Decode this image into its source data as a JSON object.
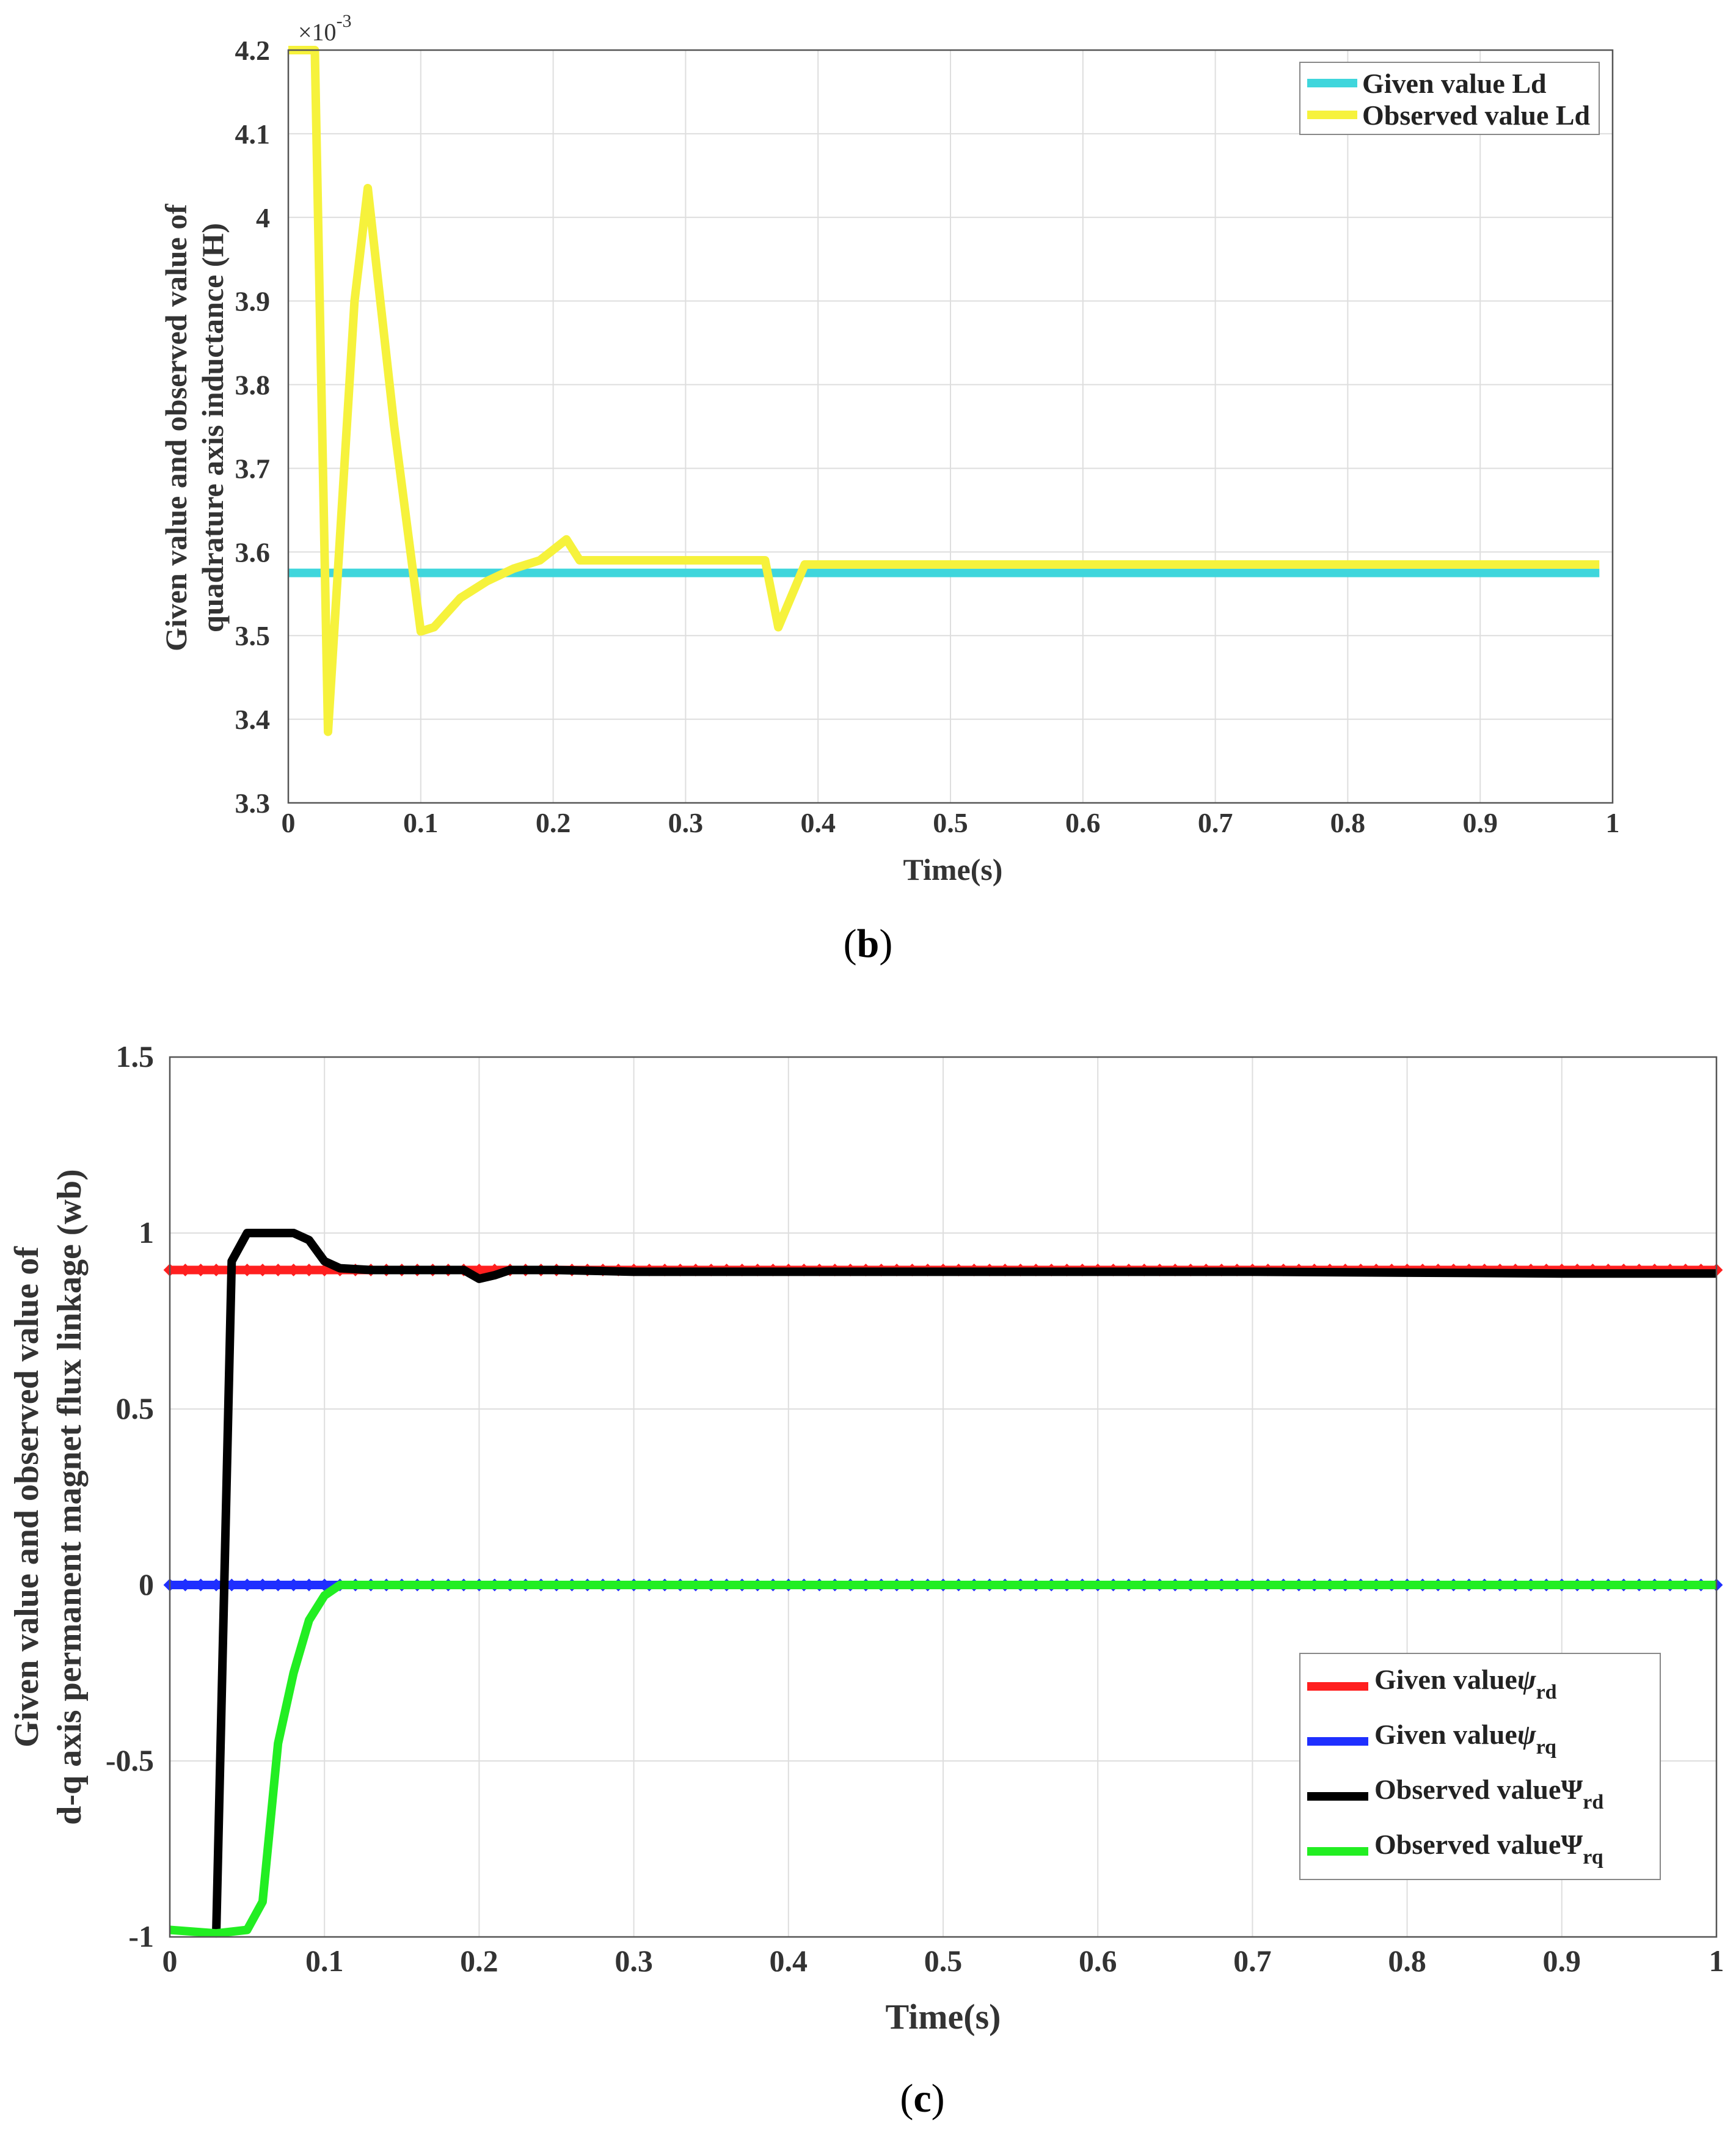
{
  "chart_data": [
    {
      "type": "line",
      "panel_label": "b",
      "xlabel": "Time(s)",
      "ylabel_line1": "Given value and observed value of",
      "ylabel_line2": "quadrature axis inductance (H)",
      "exponent_base": "×10",
      "exponent_power": "-3",
      "xlim": [
        0,
        1
      ],
      "ylim": [
        3.3,
        4.2
      ],
      "xticks": [
        "0",
        "0.1",
        "0.2",
        "0.3",
        "0.4",
        "0.5",
        "0.6",
        "0.7",
        "0.8",
        "0.9",
        "1"
      ],
      "yticks": [
        "3.3",
        "3.4",
        "3.5",
        "3.6",
        "3.7",
        "3.8",
        "3.9",
        "4",
        "4.1",
        "4.2"
      ],
      "grid": true,
      "legend_position": "top-right",
      "series": [
        {
          "name": "Given value Ld",
          "color": "#3fd6dc",
          "x": [
            0,
            0.99
          ],
          "y": [
            3.575,
            3.575
          ]
        },
        {
          "name": "Observed value Ld",
          "color": "#f6f23c",
          "x": [
            0,
            0.02,
            0.03,
            0.05,
            0.06,
            0.08,
            0.1,
            0.11,
            0.13,
            0.15,
            0.17,
            0.19,
            0.21,
            0.22,
            0.25,
            0.3,
            0.36,
            0.37,
            0.39,
            0.5,
            0.7,
            0.99
          ],
          "y": [
            4.2,
            4.2,
            3.385,
            3.9,
            4.035,
            3.75,
            3.505,
            3.51,
            3.545,
            3.565,
            3.58,
            3.59,
            3.615,
            3.59,
            3.59,
            3.59,
            3.59,
            3.51,
            3.585,
            3.585,
            3.585,
            3.585
          ]
        }
      ]
    },
    {
      "type": "line",
      "panel_label": "c",
      "xlabel": "Time(s)",
      "ylabel_line1": "Given value and observed value of",
      "ylabel_line2": "d-q axis permanent magnet flux linkage (wb)",
      "xlim": [
        0,
        1
      ],
      "ylim": [
        -1,
        1.5
      ],
      "xticks": [
        "0",
        "0.1",
        "0.2",
        "0.3",
        "0.4",
        "0.5",
        "0.6",
        "0.7",
        "0.8",
        "0.9",
        "1"
      ],
      "yticks": [
        "-1",
        "-0.5",
        "0",
        "0.5",
        "1",
        "1.5"
      ],
      "grid": true,
      "legend_position": "bottom-right",
      "series": [
        {
          "name": "Given value",
          "symbol": "ψ",
          "sub": "rd",
          "color": "#ff1f1f",
          "marker": "diamond",
          "x": [
            0,
            1
          ],
          "y": [
            0.895,
            0.895
          ]
        },
        {
          "name": "Given value",
          "symbol": "ψ",
          "sub": "rq",
          "color": "#1f2fff",
          "marker": "diamond",
          "x": [
            0,
            1
          ],
          "y": [
            0,
            0
          ]
        },
        {
          "name": "Observed value",
          "symbol": "Ψ",
          "sub": "rd",
          "color": "#000000",
          "x": [
            0.03,
            0.04,
            0.05,
            0.06,
            0.07,
            0.08,
            0.09,
            0.1,
            0.11,
            0.13,
            0.15,
            0.17,
            0.19,
            0.2,
            0.21,
            0.22,
            0.25,
            0.3,
            0.5,
            0.7,
            0.9,
            1
          ],
          "y": [
            -0.99,
            0.92,
            1.0,
            1.0,
            1.0,
            1.0,
            0.98,
            0.92,
            0.9,
            0.895,
            0.895,
            0.895,
            0.895,
            0.87,
            0.88,
            0.895,
            0.895,
            0.89,
            0.89,
            0.89,
            0.885,
            0.885
          ]
        },
        {
          "name": "Observed value",
          "symbol": "Ψ",
          "sub": "rq",
          "color": "#22ee22",
          "x": [
            0,
            0.03,
            0.05,
            0.06,
            0.07,
            0.08,
            0.09,
            0.1,
            0.11,
            0.12,
            0.2,
            0.4,
            0.6,
            0.8,
            1
          ],
          "y": [
            -0.98,
            -0.99,
            -0.98,
            -0.9,
            -0.45,
            -0.25,
            -0.1,
            -0.03,
            0,
            0,
            0,
            0,
            0,
            0,
            0
          ]
        }
      ]
    }
  ]
}
